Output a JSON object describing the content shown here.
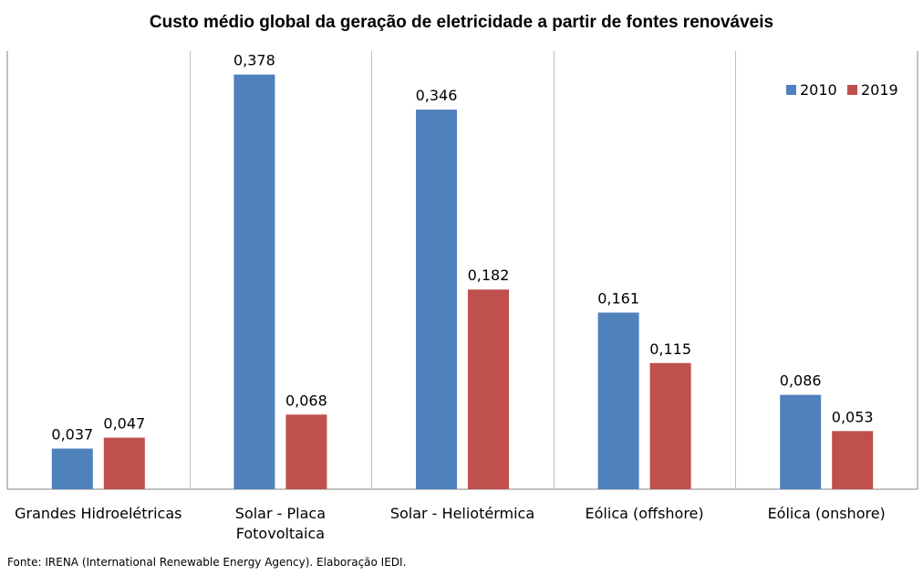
{
  "chart_data": {
    "type": "bar",
    "title": "Custo médio global da geração de eletricidade a partir de fontes renováveis",
    "categories": [
      "Grandes Hidroelétricas",
      "Solar - Placa Fotovoltaica",
      "Solar - Heliotérmica",
      "Eólica (offshore)",
      "Eólica (onshore)"
    ],
    "series": [
      {
        "name": "2010",
        "color": "#4f81bd",
        "values": [
          0.037,
          0.378,
          0.346,
          0.161,
          0.086
        ],
        "labels": [
          "0,037",
          "0,378",
          "0,346",
          "0,161",
          "0,086"
        ]
      },
      {
        "name": "2019",
        "color": "#c0504d",
        "values": [
          0.047,
          0.068,
          0.182,
          0.115,
          0.053
        ],
        "labels": [
          "0,047",
          "0,068",
          "0,182",
          "0,115",
          "0,053"
        ]
      }
    ],
    "legend_position": "top-right",
    "ylim": [
      0,
      0.4
    ],
    "grid": false
  },
  "source": "Fonte: IRENA (International Renewable Energy Agency). Elaboração IEDI."
}
